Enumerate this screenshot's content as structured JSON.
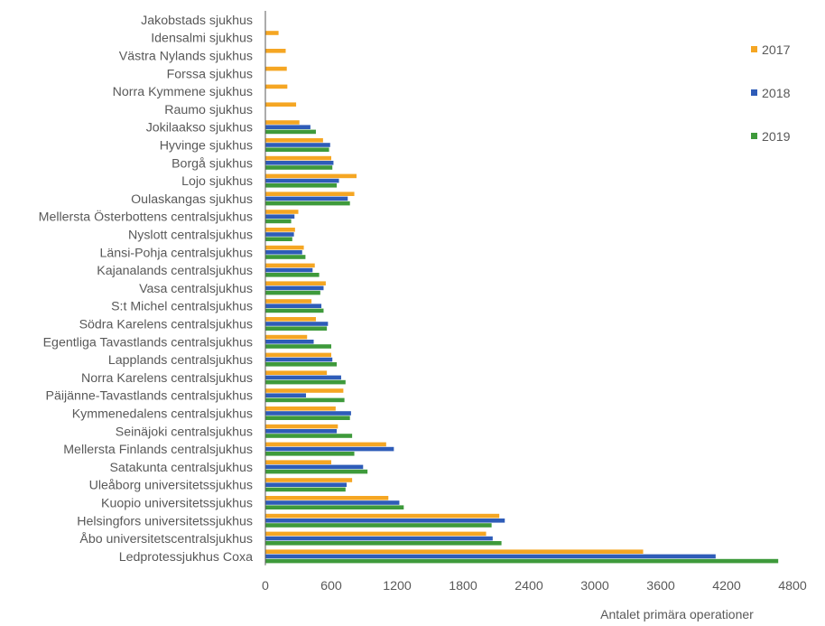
{
  "chart_data": {
    "type": "bar",
    "orientation": "horizontal",
    "title": "",
    "xlabel": "Antalet primära operationer",
    "ylabel": "",
    "xlim": [
      0,
      4800
    ],
    "xticks": [
      0,
      600,
      1200,
      1800,
      2400,
      3000,
      3600,
      4200,
      4800
    ],
    "grid": false,
    "legend_position": "right",
    "categories": [
      "Jakobstads sjukhus",
      "Idensalmi sjukhus",
      "Västra Nylands sjukhus",
      "Forssa sjukhus",
      "Norra Kymmene sjukhus",
      "Raumo sjukhus",
      "Jokilaakso sjukhus",
      "Hyvinge sjukhus",
      "Borgå sjukhus",
      "Lojo sjukhus",
      "Oulaskangas sjukhus",
      "Mellersta Österbottens centralsjukhus",
      "Nyslott centralsjukhus",
      "Länsi-Pohja centralsjukhus",
      "Kajanalands centralsjukhus",
      "Vasa centralsjukhus",
      "S:t Michel centralsjukhus",
      "Södra Karelens centralsjukhus",
      "Egentliga Tavastlands centralsjukhus",
      "Lapplands centralsjukhus",
      "Norra Karelens centralsjukhus",
      "Päijänne-Tavastlands centralsjukhus",
      "Kymmenedalens centralsjukhus",
      "Seinäjoki centralsjukhus",
      "Mellersta Finlands centralsjukhus",
      "Satakunta centralsjukhus",
      "Uleåborg universitetssjukhus",
      "Kuopio universitetssjukhus",
      "Helsingfors universitetssjukhus",
      "Åbo universitetscentralsjukhus",
      "Ledprotessjukhus Coxa"
    ],
    "series": [
      {
        "name": "2017",
        "color": "#F5A623",
        "values": [
          0,
          120,
          185,
          195,
          200,
          280,
          310,
          525,
          600,
          830,
          810,
          300,
          270,
          350,
          450,
          550,
          420,
          460,
          380,
          600,
          560,
          710,
          640,
          660,
          1100,
          600,
          790,
          1120,
          2130,
          2010,
          3440
        ]
      },
      {
        "name": "2018",
        "color": "#2E5CB8",
        "values": [
          0,
          0,
          0,
          0,
          0,
          0,
          410,
          590,
          620,
          670,
          750,
          265,
          260,
          335,
          430,
          530,
          510,
          570,
          440,
          610,
          690,
          370,
          780,
          650,
          1170,
          890,
          740,
          1220,
          2180,
          2070,
          4100
        ]
      },
      {
        "name": "2019",
        "color": "#3E9A3B",
        "values": [
          0,
          0,
          0,
          0,
          0,
          0,
          460,
          580,
          610,
          650,
          770,
          235,
          245,
          365,
          490,
          500,
          530,
          560,
          600,
          650,
          730,
          720,
          770,
          790,
          810,
          930,
          730,
          1260,
          2060,
          2150,
          4670
        ]
      }
    ]
  }
}
